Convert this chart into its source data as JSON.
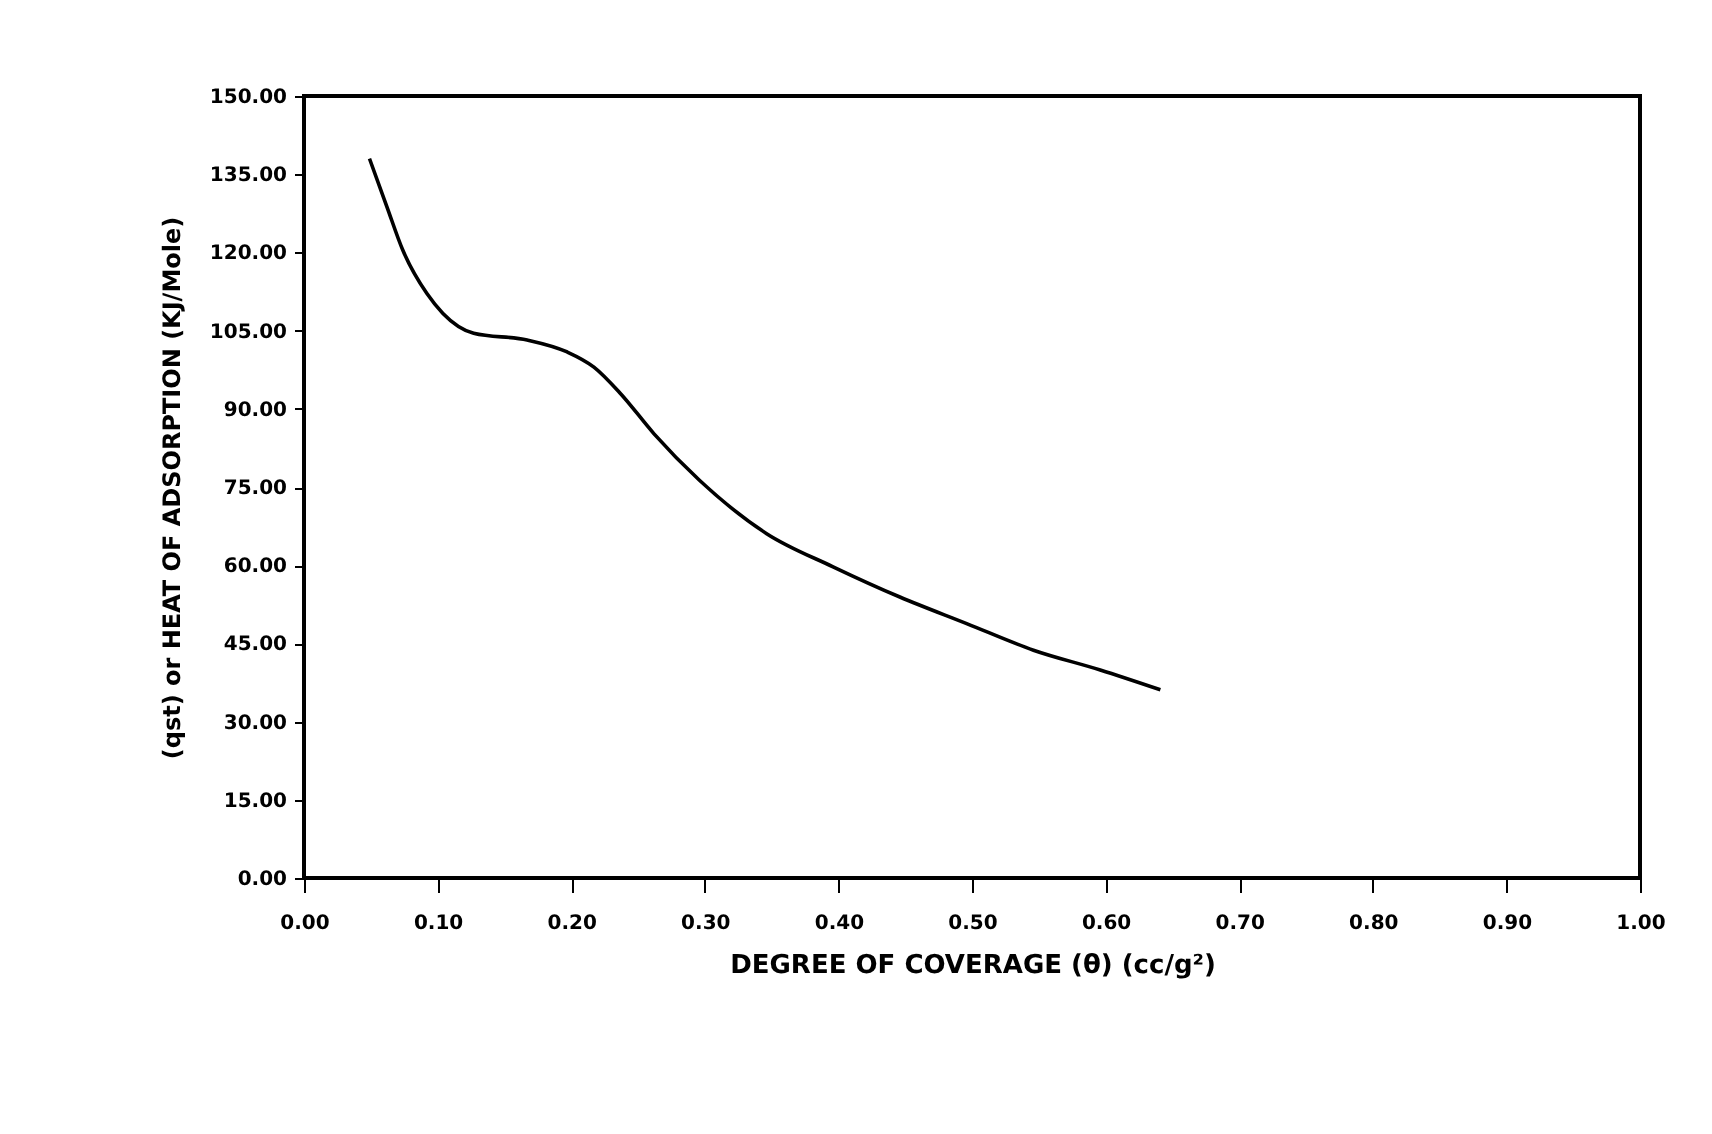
{
  "chart_data": {
    "type": "line",
    "xlabel": "DEGREE OF COVERAGE (θ) (cc/g²)",
    "ylabel": "(qst) or HEAT OF ADSORPTION (KJ/Mole)",
    "x": [
      0.049,
      0.062,
      0.074,
      0.092,
      0.104,
      0.127,
      0.167,
      0.197,
      0.217,
      0.237,
      0.262,
      0.296,
      0.346,
      0.396,
      0.446,
      0.496,
      0.546,
      0.596,
      0.641
    ],
    "series": [
      {
        "color": "#000000",
        "values": [
          138,
          128.8,
          120.4,
          112.1,
          108.3,
          104.5,
          103.2,
          100.9,
          98,
          92.9,
          85.2,
          76.3,
          66.1,
          59.7,
          53.9,
          48.8,
          43.7,
          39.9,
          36.1
        ]
      }
    ],
    "xlim": [
      0,
      1
    ],
    "ylim": [
      0,
      150
    ],
    "xticks": [
      {
        "value": 0,
        "label": "0.00"
      },
      {
        "value": 0.1,
        "label": "0.10"
      },
      {
        "value": 0.2,
        "label": "0.20"
      },
      {
        "value": 0.3,
        "label": "0.30"
      },
      {
        "value": 0.4,
        "label": "0.40"
      },
      {
        "value": 0.5,
        "label": "0.50"
      },
      {
        "value": 0.6,
        "label": "0.60"
      },
      {
        "value": 0.7,
        "label": "0.70"
      },
      {
        "value": 0.8,
        "label": "0.80"
      },
      {
        "value": 0.9,
        "label": "0.90"
      },
      {
        "value": 1,
        "label": "1.00"
      }
    ],
    "yticks": [
      {
        "value": 0,
        "label": "0.00"
      },
      {
        "value": 15,
        "label": "15.00"
      },
      {
        "value": 30,
        "label": "30.00"
      },
      {
        "value": 45,
        "label": "45.00"
      },
      {
        "value": 60,
        "label": "60.00"
      },
      {
        "value": 75,
        "label": "75.00"
      },
      {
        "value": 90,
        "label": "90.00"
      },
      {
        "value": 105,
        "label": "105.00"
      },
      {
        "value": 120,
        "label": "120.00"
      },
      {
        "value": 135,
        "label": "135.00"
      },
      {
        "value": 150,
        "label": "150.00"
      }
    ],
    "grid": false,
    "marker": "none",
    "line_style": "solid"
  }
}
